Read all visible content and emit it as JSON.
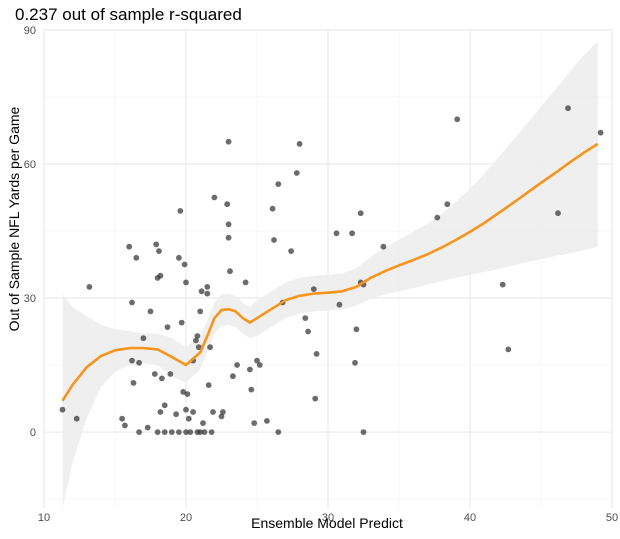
{
  "chart_data": {
    "type": "scatter",
    "title": "0.237 out of sample r-squared",
    "xlabel": "Ensemble Model Predict",
    "ylabel": "Out of Sample NFL Yards per Game",
    "xlim": [
      10,
      50
    ],
    "ylim": [
      -17,
      90
    ],
    "xticks": [
      10,
      20,
      30,
      40,
      50
    ],
    "yticks": [
      0,
      30,
      60,
      90
    ],
    "grid": true,
    "colors": {
      "points": "#333333",
      "smooth_line": "#f7941d",
      "confidence_band": "#ececec",
      "grid_major": "#ebebeb",
      "grid_minor": "#f5f5f5"
    },
    "points": [
      {
        "x": 11.3,
        "y": 5
      },
      {
        "x": 12.3,
        "y": 3
      },
      {
        "x": 13.2,
        "y": 32.5
      },
      {
        "x": 15.5,
        "y": 3
      },
      {
        "x": 15.7,
        "y": 1.5
      },
      {
        "x": 16.0,
        "y": 41.5
      },
      {
        "x": 16.2,
        "y": 29
      },
      {
        "x": 16.2,
        "y": 16
      },
      {
        "x": 16.3,
        "y": 11
      },
      {
        "x": 16.5,
        "y": 39
      },
      {
        "x": 16.7,
        "y": 0
      },
      {
        "x": 16.7,
        "y": 15.5
      },
      {
        "x": 17.0,
        "y": 21
      },
      {
        "x": 17.3,
        "y": 1
      },
      {
        "x": 17.5,
        "y": 27
      },
      {
        "x": 17.8,
        "y": 13
      },
      {
        "x": 17.9,
        "y": 42
      },
      {
        "x": 18.0,
        "y": 0
      },
      {
        "x": 18.0,
        "y": 34.5
      },
      {
        "x": 18.1,
        "y": 40.5
      },
      {
        "x": 18.2,
        "y": 35
      },
      {
        "x": 18.2,
        "y": 4.5
      },
      {
        "x": 18.3,
        "y": 12
      },
      {
        "x": 18.5,
        "y": 0
      },
      {
        "x": 18.5,
        "y": 6
      },
      {
        "x": 18.7,
        "y": 23.5
      },
      {
        "x": 18.9,
        "y": 13
      },
      {
        "x": 19.0,
        "y": 0
      },
      {
        "x": 19.3,
        "y": 4
      },
      {
        "x": 19.5,
        "y": 39
      },
      {
        "x": 19.5,
        "y": 0
      },
      {
        "x": 19.6,
        "y": 49.5
      },
      {
        "x": 19.7,
        "y": 24.5
      },
      {
        "x": 19.8,
        "y": 9
      },
      {
        "x": 19.9,
        "y": 37.5
      },
      {
        "x": 20.0,
        "y": 33.5
      },
      {
        "x": 20.0,
        "y": 5
      },
      {
        "x": 20.0,
        "y": 0
      },
      {
        "x": 20.1,
        "y": 8.5
      },
      {
        "x": 20.2,
        "y": 3
      },
      {
        "x": 20.3,
        "y": 0
      },
      {
        "x": 20.5,
        "y": 4.5
      },
      {
        "x": 20.5,
        "y": 16
      },
      {
        "x": 20.7,
        "y": 20.5
      },
      {
        "x": 20.8,
        "y": 0
      },
      {
        "x": 20.8,
        "y": 21.5
      },
      {
        "x": 20.9,
        "y": 19
      },
      {
        "x": 21.0,
        "y": 0
      },
      {
        "x": 21.0,
        "y": 27
      },
      {
        "x": 21.1,
        "y": 31.5
      },
      {
        "x": 21.2,
        "y": 2
      },
      {
        "x": 21.3,
        "y": 0
      },
      {
        "x": 21.5,
        "y": 32.5
      },
      {
        "x": 21.5,
        "y": 31
      },
      {
        "x": 21.6,
        "y": 10.5
      },
      {
        "x": 21.7,
        "y": 19
      },
      {
        "x": 21.8,
        "y": 0
      },
      {
        "x": 21.9,
        "y": 4.5
      },
      {
        "x": 22.0,
        "y": 52.5
      },
      {
        "x": 22.5,
        "y": 3.5
      },
      {
        "x": 22.6,
        "y": 4.5
      },
      {
        "x": 22.9,
        "y": 51
      },
      {
        "x": 23.0,
        "y": 65
      },
      {
        "x": 23.0,
        "y": 46.5
      },
      {
        "x": 23.0,
        "y": 43.5
      },
      {
        "x": 23.1,
        "y": 36
      },
      {
        "x": 23.3,
        "y": 12.5
      },
      {
        "x": 23.6,
        "y": 15
      },
      {
        "x": 24.2,
        "y": 33.5
      },
      {
        "x": 24.5,
        "y": 14
      },
      {
        "x": 24.6,
        "y": 9.5
      },
      {
        "x": 24.8,
        "y": 2
      },
      {
        "x": 25.0,
        "y": 16
      },
      {
        "x": 25.2,
        "y": 15
      },
      {
        "x": 25.7,
        "y": 2.5
      },
      {
        "x": 26.1,
        "y": 50
      },
      {
        "x": 26.2,
        "y": 43
      },
      {
        "x": 26.5,
        "y": 55.5
      },
      {
        "x": 26.5,
        "y": 0
      },
      {
        "x": 26.8,
        "y": 29
      },
      {
        "x": 27.4,
        "y": 40.5
      },
      {
        "x": 27.8,
        "y": 58
      },
      {
        "x": 28.0,
        "y": 64.5
      },
      {
        "x": 28.4,
        "y": 25.5
      },
      {
        "x": 28.6,
        "y": 22.5
      },
      {
        "x": 29.0,
        "y": 32
      },
      {
        "x": 29.1,
        "y": 7.5
      },
      {
        "x": 29.2,
        "y": 17.5
      },
      {
        "x": 30.6,
        "y": 44.5
      },
      {
        "x": 30.8,
        "y": 28.5
      },
      {
        "x": 31.7,
        "y": 44.5
      },
      {
        "x": 31.9,
        "y": 15.5
      },
      {
        "x": 32.0,
        "y": 23
      },
      {
        "x": 32.3,
        "y": 33.5
      },
      {
        "x": 32.3,
        "y": 49
      },
      {
        "x": 32.5,
        "y": 0
      },
      {
        "x": 32.5,
        "y": 33
      },
      {
        "x": 33.9,
        "y": 41.5
      },
      {
        "x": 37.7,
        "y": 48
      },
      {
        "x": 38.4,
        "y": 51
      },
      {
        "x": 39.1,
        "y": 70
      },
      {
        "x": 42.3,
        "y": 33
      },
      {
        "x": 42.7,
        "y": 18.5
      },
      {
        "x": 46.2,
        "y": 49
      },
      {
        "x": 46.9,
        "y": 72.5
      },
      {
        "x": 49.2,
        "y": 67
      }
    ],
    "smooth": {
      "x": [
        11.3,
        12,
        13,
        14,
        15,
        16,
        17,
        18,
        19,
        20,
        21,
        21.5,
        22,
        22.5,
        23,
        23.5,
        24,
        24.5,
        25,
        26,
        27,
        28,
        29,
        30,
        31,
        32,
        33,
        34,
        35,
        36,
        37,
        38,
        39,
        40,
        41,
        42,
        43,
        44,
        45,
        46,
        47,
        48,
        49
      ],
      "y": [
        7,
        10.5,
        14.5,
        17,
        18.3,
        18.8,
        18.8,
        18.5,
        16.8,
        15,
        17.8,
        21.5,
        25.5,
        27.3,
        27.5,
        27,
        25.5,
        24.5,
        25.5,
        27.5,
        29.5,
        30.5,
        31,
        31.2,
        31.5,
        32.5,
        34.5,
        36,
        37.3,
        38.5,
        39.8,
        41.3,
        43,
        44.8,
        46.8,
        49,
        51.2,
        53.5,
        55.8,
        58,
        60.3,
        62.5,
        64.5
      ],
      "lower": [
        -17,
        -7,
        3,
        10,
        13.5,
        15,
        15.5,
        15,
        12.5,
        11,
        14,
        18,
        22,
        23.8,
        24,
        23.5,
        22,
        21,
        21.5,
        23.5,
        25.5,
        26.5,
        27,
        27.2,
        27.5,
        28.3,
        29.8,
        30.8,
        31.5,
        32.2,
        33,
        33.8,
        34.5,
        35.2,
        35.8,
        36.5,
        37.2,
        38,
        38.7,
        39.4,
        40,
        40.7,
        41.5
      ],
      "upper": [
        31,
        28,
        26,
        24,
        23,
        22.6,
        22.1,
        22,
        21.1,
        19,
        21.6,
        25,
        29,
        30.8,
        31,
        30.5,
        29,
        28,
        29.5,
        31.5,
        33.5,
        34.5,
        35,
        35.2,
        35.5,
        36.7,
        39.2,
        41.2,
        43.1,
        44.8,
        46.6,
        48.8,
        51.5,
        54.4,
        57.8,
        61.5,
        65.2,
        69,
        72.9,
        76.6,
        80.6,
        84.3,
        87.5
      ]
    }
  }
}
